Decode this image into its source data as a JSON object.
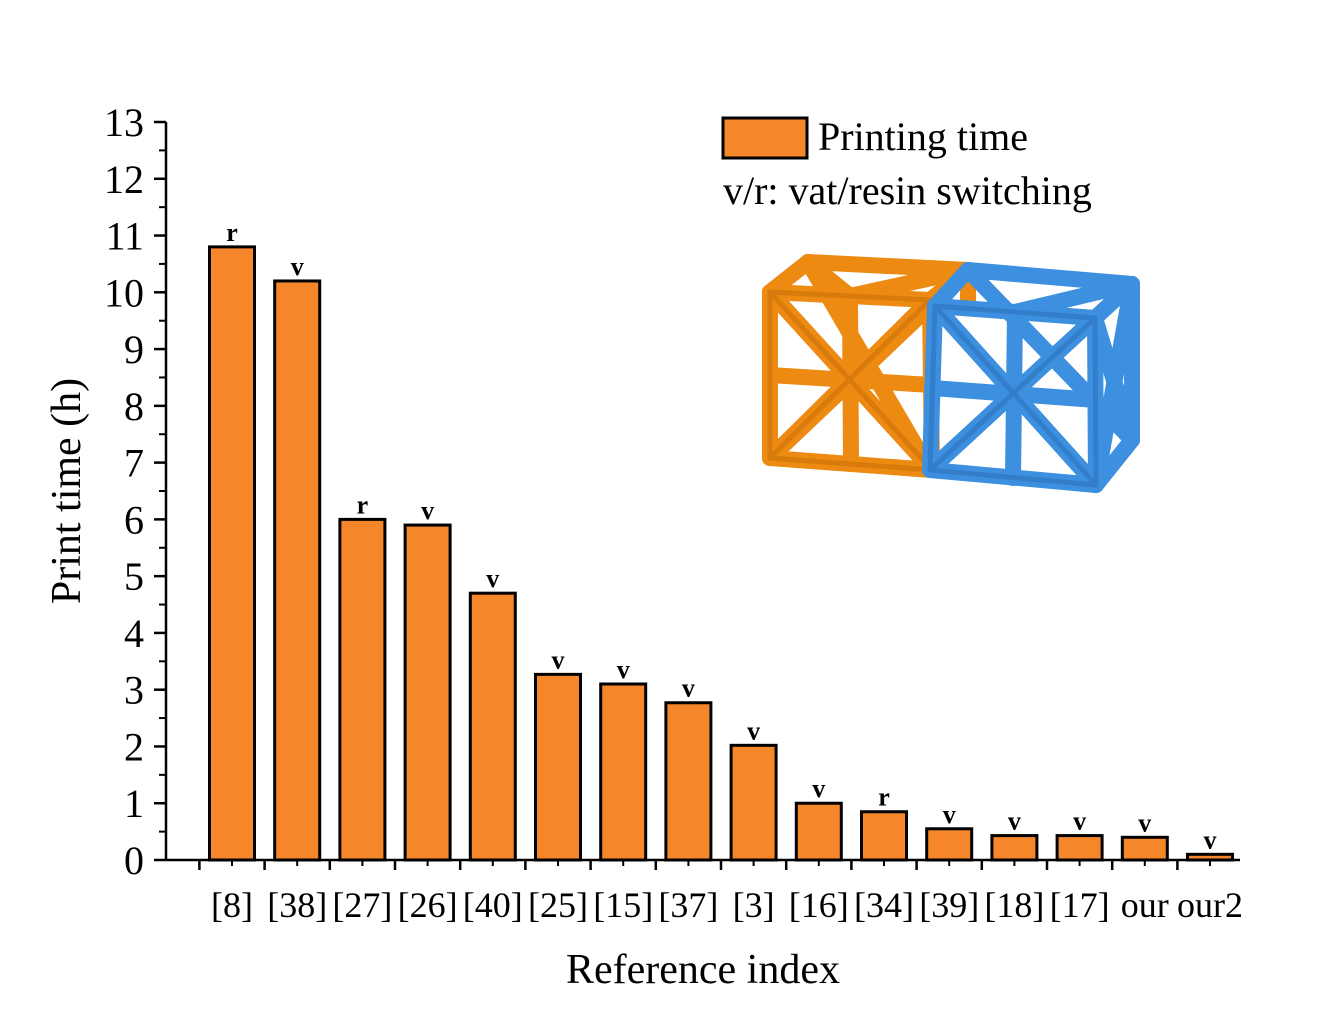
{
  "chart_data": {
    "type": "bar",
    "xlabel": "Reference index",
    "ylabel": "Print time (h)",
    "ylim": [
      0,
      13
    ],
    "y_ticks": [
      0,
      1,
      2,
      3,
      4,
      5,
      6,
      7,
      8,
      9,
      10,
      11,
      12,
      13
    ],
    "categories": [
      "[8]",
      "[38]",
      "[27]",
      "[26]",
      "[40]",
      "[25]",
      "[15]",
      "[37]",
      "[3]",
      "[16]",
      "[34]",
      "[39]",
      "[18]",
      "[17]",
      "our",
      "our2"
    ],
    "series": [
      {
        "name": "Printing time",
        "values": [
          10.8,
          10.2,
          6.0,
          5.9,
          4.7,
          3.27,
          3.1,
          2.77,
          2.02,
          1.0,
          0.85,
          0.55,
          0.43,
          0.43,
          0.4,
          0.1
        ],
        "annotations": [
          "r",
          "v",
          "r",
          "v",
          "v",
          "v",
          "v",
          "v",
          "v",
          "v",
          "r",
          "v",
          "v",
          "v",
          "v",
          "v"
        ]
      }
    ],
    "legend": {
      "position": "top-right",
      "entries": [
        "Printing time"
      ],
      "note": "v/r: vat/resin switching"
    },
    "grid": false,
    "bar_color": "#F5862A",
    "bar_stroke": "#000000"
  },
  "inset": {
    "icon": "lattice-structure-icon",
    "colors": {
      "left": "#EC8A12",
      "right": "#3D8FDF"
    }
  }
}
